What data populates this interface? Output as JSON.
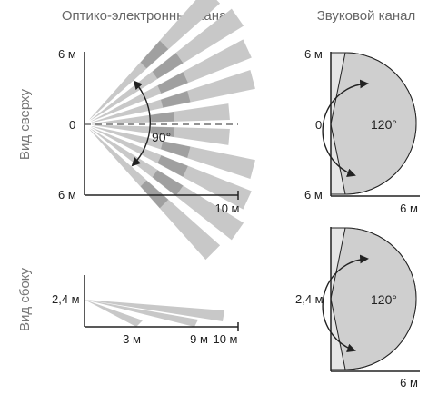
{
  "headers": {
    "optical": "Оптико-электронный канал",
    "acoustic": "Звуковой канал"
  },
  "side_labels": {
    "top_view": "Вид сверху",
    "side_view": "Вид сбоку"
  },
  "top_optical": {
    "y_top": "6 м",
    "y_mid": "0",
    "y_bottom": "6 м",
    "x_end": "10 м",
    "angle": "90°"
  },
  "top_acoustic": {
    "y_top": "6 м",
    "y_mid": "0",
    "y_bottom": "6 м",
    "x_end": "6 м",
    "angle": "120°"
  },
  "side_optical": {
    "height": "2,4 м",
    "x1": "3 м",
    "x2": "9 м",
    "x3": "10 м"
  },
  "side_acoustic": {
    "height": "2,4 м",
    "x_end": "6 м",
    "angle": "120°"
  },
  "colors": {
    "beam_light": "#c8c8c8",
    "beam_dark": "#a0a0a0",
    "zone_fill": "#cfcfcf",
    "zone_light": "#e6e6e6",
    "axis": "#222222"
  }
}
